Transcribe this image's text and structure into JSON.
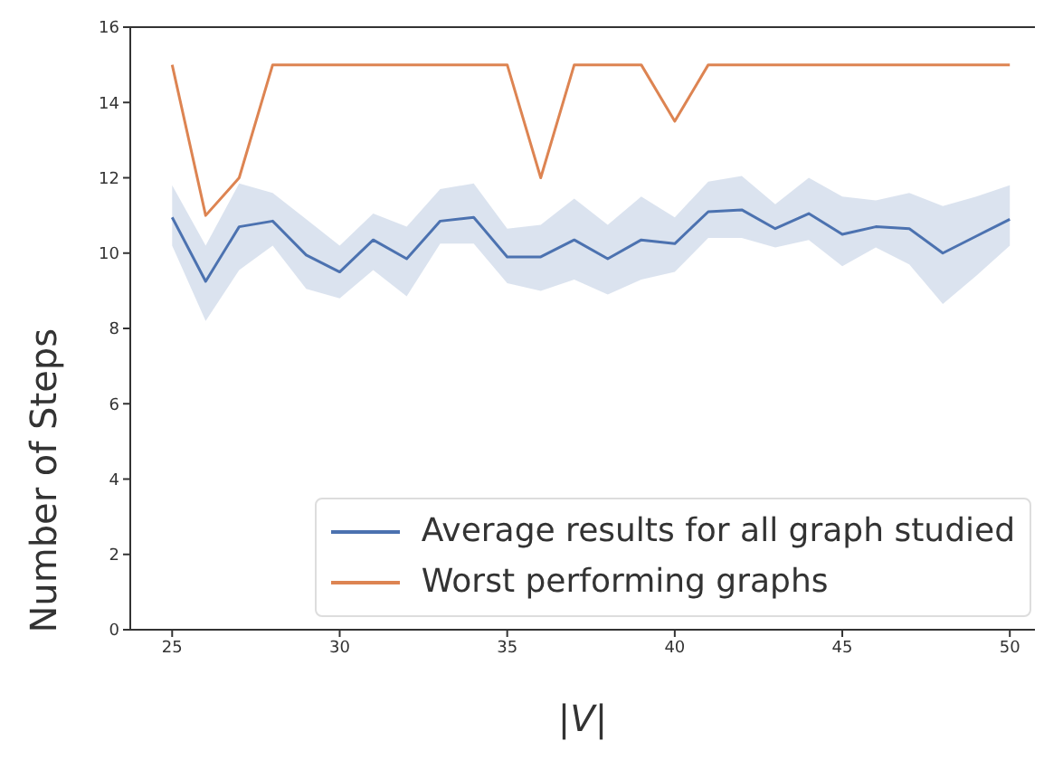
{
  "chart_data": {
    "type": "line",
    "xlabel": "|V|",
    "ylabel": "Number of Steps",
    "x": [
      25,
      26,
      27,
      28,
      29,
      30,
      31,
      32,
      33,
      34,
      35,
      36,
      37,
      38,
      39,
      40,
      41,
      42,
      43,
      44,
      45,
      46,
      47,
      48,
      49,
      50
    ],
    "series": [
      {
        "name": "Average results for all graph studied",
        "color": "#4c72b0",
        "values": [
          10.95,
          9.25,
          10.7,
          10.85,
          9.95,
          9.5,
          10.35,
          9.85,
          10.85,
          10.95,
          9.9,
          9.9,
          10.35,
          9.85,
          10.35,
          10.25,
          11.1,
          11.15,
          10.65,
          11.05,
          10.5,
          10.7,
          10.65,
          10.0,
          10.45,
          10.9
        ],
        "lower": [
          10.2,
          8.2,
          9.55,
          10.2,
          9.05,
          8.8,
          9.55,
          8.85,
          10.25,
          10.25,
          9.2,
          9.0,
          9.3,
          8.9,
          9.3,
          9.5,
          10.4,
          10.4,
          10.15,
          10.35,
          9.65,
          10.15,
          9.7,
          8.65,
          9.4,
          10.2
        ],
        "upper": [
          11.8,
          10.2,
          11.85,
          11.6,
          10.9,
          10.2,
          11.05,
          10.7,
          11.7,
          11.85,
          10.65,
          10.75,
          11.45,
          10.75,
          11.5,
          10.95,
          11.9,
          12.05,
          11.3,
          12.0,
          11.5,
          11.4,
          11.6,
          11.25,
          11.5,
          11.8
        ]
      },
      {
        "name": "Worst performing graphs",
        "color": "#dd8452",
        "values": [
          15,
          11,
          12,
          15,
          15,
          15,
          15,
          15,
          15,
          15,
          15,
          12,
          15,
          15,
          15,
          13.5,
          15,
          15,
          15,
          15,
          15,
          15,
          15,
          15,
          15,
          15
        ]
      }
    ],
    "xlim": [
      23.75,
      50.75
    ],
    "xticks": [
      25,
      30,
      35,
      40,
      45,
      50
    ],
    "ylim": [
      0,
      16
    ],
    "yticks": [
      0,
      2,
      4,
      6,
      8,
      10,
      12,
      14,
      16
    ],
    "legend": "bottom right",
    "grid": false
  }
}
